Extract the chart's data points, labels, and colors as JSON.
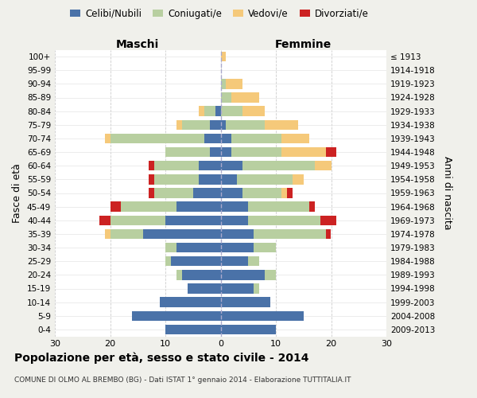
{
  "age_groups": [
    "0-4",
    "5-9",
    "10-14",
    "15-19",
    "20-24",
    "25-29",
    "30-34",
    "35-39",
    "40-44",
    "45-49",
    "50-54",
    "55-59",
    "60-64",
    "65-69",
    "70-74",
    "75-79",
    "80-84",
    "85-89",
    "90-94",
    "95-99",
    "100+"
  ],
  "birth_years": [
    "2009-2013",
    "2004-2008",
    "1999-2003",
    "1994-1998",
    "1989-1993",
    "1984-1988",
    "1979-1983",
    "1974-1978",
    "1969-1973",
    "1964-1968",
    "1959-1963",
    "1954-1958",
    "1949-1953",
    "1944-1948",
    "1939-1943",
    "1934-1938",
    "1929-1933",
    "1924-1928",
    "1919-1923",
    "1914-1918",
    "≤ 1913"
  ],
  "maschi": {
    "celibi": [
      10,
      16,
      11,
      6,
      7,
      9,
      8,
      14,
      10,
      8,
      5,
      4,
      4,
      2,
      3,
      2,
      1,
      0,
      0,
      0,
      0
    ],
    "coniugati": [
      0,
      0,
      0,
      0,
      1,
      1,
      2,
      6,
      10,
      10,
      7,
      8,
      8,
      8,
      17,
      5,
      2,
      0,
      0,
      0,
      0
    ],
    "vedovi": [
      0,
      0,
      0,
      0,
      0,
      0,
      0,
      1,
      0,
      0,
      0,
      0,
      0,
      0,
      1,
      1,
      1,
      0,
      0,
      0,
      0
    ],
    "divorziati": [
      0,
      0,
      0,
      0,
      0,
      0,
      0,
      0,
      2,
      2,
      1,
      1,
      1,
      0,
      0,
      0,
      0,
      0,
      0,
      0,
      0
    ]
  },
  "femmine": {
    "nubili": [
      10,
      15,
      9,
      6,
      8,
      5,
      6,
      6,
      5,
      5,
      4,
      3,
      4,
      2,
      2,
      1,
      0,
      0,
      0,
      0,
      0
    ],
    "coniugate": [
      0,
      0,
      0,
      1,
      2,
      2,
      4,
      13,
      13,
      11,
      7,
      10,
      13,
      9,
      9,
      7,
      4,
      2,
      1,
      0,
      0
    ],
    "vedove": [
      0,
      0,
      0,
      0,
      0,
      0,
      0,
      0,
      0,
      0,
      1,
      2,
      3,
      8,
      5,
      6,
      4,
      5,
      3,
      0,
      1
    ],
    "divorziate": [
      0,
      0,
      0,
      0,
      0,
      0,
      0,
      1,
      3,
      1,
      1,
      0,
      0,
      2,
      0,
      0,
      0,
      0,
      0,
      0,
      0
    ]
  },
  "colors": {
    "celibi": "#4a72a8",
    "coniugati": "#b8cfa0",
    "vedovi": "#f5c97a",
    "divorziati": "#cc2222"
  },
  "xlim": 30,
  "title": "Popolazione per età, sesso e stato civile - 2014",
  "subtitle": "COMUNE DI OLMO AL BREMBO (BG) - Dati ISTAT 1° gennaio 2014 - Elaborazione TUTTITALIA.IT",
  "ylabel_left": "Fasce di età",
  "ylabel_right": "Anni di nascita",
  "xlabel_maschi": "Maschi",
  "xlabel_femmine": "Femmine",
  "bg_color": "#f0f0eb",
  "plot_bg": "#ffffff"
}
